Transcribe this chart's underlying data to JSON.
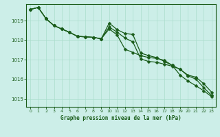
{
  "title": "Graphe pression niveau de la mer (hPa)",
  "background_color": "#cceee8",
  "grid_color": "#aaddcc",
  "line_color": "#1a5c1a",
  "xlim": [
    -0.5,
    23.5
  ],
  "ylim": [
    1014.6,
    1019.85
  ],
  "yticks": [
    1015,
    1016,
    1017,
    1018,
    1019
  ],
  "xtick_labels": [
    "0",
    "1",
    "2",
    "3",
    "4",
    "5",
    "6",
    "7",
    "8",
    "9",
    "10",
    "11",
    "12",
    "13",
    "14",
    "15",
    "16",
    "17",
    "18",
    "19",
    "20",
    "21",
    "22",
    "23"
  ],
  "series1": [
    1019.58,
    1019.68,
    1019.1,
    1018.75,
    1018.58,
    1018.4,
    1018.2,
    1018.18,
    1018.15,
    1018.08,
    1018.88,
    1018.55,
    1018.35,
    1018.3,
    1017.35,
    1017.22,
    1017.12,
    1016.92,
    1016.72,
    1016.52,
    1016.22,
    1016.12,
    1015.78,
    1015.35
  ],
  "series2": [
    1019.58,
    1019.68,
    1019.1,
    1018.75,
    1018.58,
    1018.4,
    1018.2,
    1018.18,
    1018.15,
    1018.08,
    1018.68,
    1018.42,
    1018.12,
    1017.92,
    1017.05,
    1016.92,
    1016.88,
    1016.78,
    1016.68,
    1016.52,
    1016.18,
    1016.02,
    1015.58,
    1015.18
  ],
  "series3": [
    1019.58,
    1019.68,
    1019.1,
    1018.75,
    1018.58,
    1018.4,
    1018.2,
    1018.18,
    1018.15,
    1018.08,
    1018.58,
    1018.28,
    1017.55,
    1017.38,
    1017.22,
    1017.12,
    1017.08,
    1016.98,
    1016.72,
    1016.22,
    1015.92,
    1015.68,
    1015.42,
    1015.12
  ],
  "markersize": 2.5,
  "linewidth": 0.9
}
